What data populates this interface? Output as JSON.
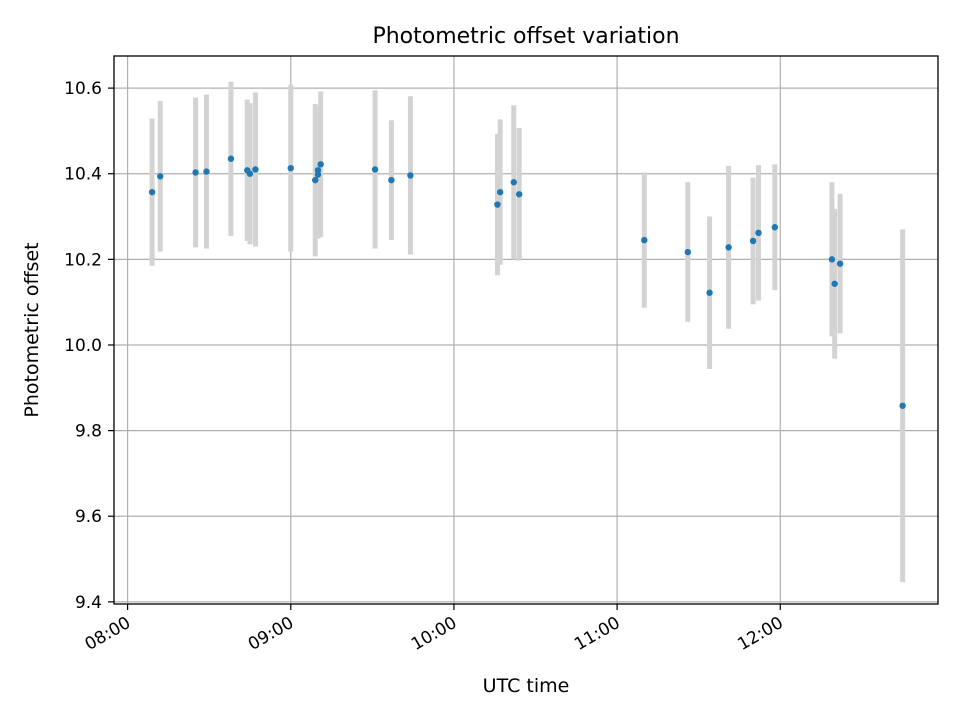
{
  "chart_data": {
    "type": "scatter",
    "title": "Photometric offset variation",
    "xlabel": "UTC time",
    "ylabel": "Photometric offset",
    "x_tick_labels": [
      "08:00",
      "09:00",
      "10:00",
      "11:00",
      "12:00"
    ],
    "y_tick_labels": [
      "9.4",
      "9.6",
      "9.8",
      "10.0",
      "10.2",
      "10.4",
      "10.6"
    ],
    "x_ticks": [
      "08:00",
      "09:00",
      "10:00",
      "11:00",
      "12:00"
    ],
    "y_ticks": [
      9.4,
      9.6,
      9.8,
      10.0,
      10.2,
      10.4,
      10.6
    ],
    "xlim": [
      "07:55",
      "12:58"
    ],
    "ylim": [
      9.395,
      10.675
    ],
    "grid": true,
    "marker_color": "#1f77b4",
    "errorbar_color": "#d3d3d3",
    "points": [
      {
        "x": "08:09",
        "y": 10.357,
        "err": 0.172
      },
      {
        "x": "08:12",
        "y": 10.394,
        "err": 0.176
      },
      {
        "x": "08:25",
        "y": 10.403,
        "err": 0.175
      },
      {
        "x": "08:29",
        "y": 10.405,
        "err": 0.18
      },
      {
        "x": "08:38",
        "y": 10.435,
        "err": 0.18
      },
      {
        "x": "08:44",
        "y": 10.408,
        "err": 0.165
      },
      {
        "x": "08:45",
        "y": 10.4,
        "err": 0.165
      },
      {
        "x": "08:47",
        "y": 10.41,
        "err": 0.18
      },
      {
        "x": "09:00",
        "y": 10.413,
        "err": 0.195
      },
      {
        "x": "09:09",
        "y": 10.385,
        "err": 0.178
      },
      {
        "x": "09:10",
        "y": 10.398,
        "err": 0.15
      },
      {
        "x": "09:10",
        "y": 10.408,
        "err": 0.15
      },
      {
        "x": "09:11",
        "y": 10.422,
        "err": 0.17
      },
      {
        "x": "09:31",
        "y": 10.41,
        "err": 0.185
      },
      {
        "x": "09:37",
        "y": 10.385,
        "err": 0.14
      },
      {
        "x": "09:44",
        "y": 10.396,
        "err": 0.185
      },
      {
        "x": "10:16",
        "y": 10.328,
        "err": 0.165
      },
      {
        "x": "10:17",
        "y": 10.357,
        "err": 0.17
      },
      {
        "x": "10:22",
        "y": 10.38,
        "err": 0.18
      },
      {
        "x": "10:24",
        "y": 10.352,
        "err": 0.155
      },
      {
        "x": "11:10",
        "y": 10.245,
        "err": 0.158
      },
      {
        "x": "11:26",
        "y": 10.217,
        "err": 0.163
      },
      {
        "x": "11:34",
        "y": 10.122,
        "err": 0.178
      },
      {
        "x": "11:41",
        "y": 10.228,
        "err": 0.19
      },
      {
        "x": "11:50",
        "y": 10.243,
        "err": 0.148
      },
      {
        "x": "11:52",
        "y": 10.262,
        "err": 0.158
      },
      {
        "x": "11:58",
        "y": 10.275,
        "err": 0.147
      },
      {
        "x": "12:19",
        "y": 10.2,
        "err": 0.18
      },
      {
        "x": "12:20",
        "y": 10.143,
        "err": 0.175
      },
      {
        "x": "12:22",
        "y": 10.19,
        "err": 0.163
      },
      {
        "x": "12:45",
        "y": 9.858,
        "err": 0.412
      }
    ]
  }
}
